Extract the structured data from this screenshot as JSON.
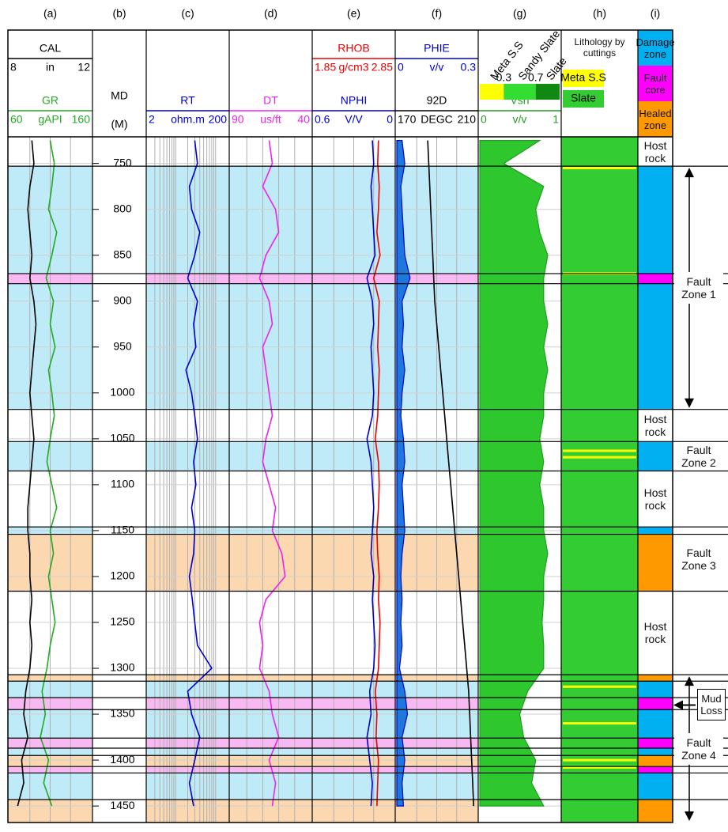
{
  "chart_data": {
    "type": "well-log",
    "panels": [
      "(a)",
      "(b)",
      "(c)",
      "(d)",
      "(e)",
      "(f)",
      "(g)",
      "(h)",
      "(i)"
    ],
    "depth_axis": {
      "label": "MD",
      "unit": "(M)",
      "ylim": [
        721,
        1468
      ],
      "yticks": [
        750,
        800,
        850,
        900,
        950,
        1000,
        1050,
        1100,
        1150,
        1200,
        1250,
        1300,
        1350,
        1400,
        1450
      ]
    },
    "depths": [
      725,
      750,
      775,
      800,
      825,
      850,
      875,
      900,
      925,
      950,
      975,
      1000,
      1025,
      1050,
      1075,
      1100,
      1125,
      1150,
      1175,
      1200,
      1225,
      1250,
      1275,
      1300,
      1325,
      1350,
      1375,
      1400,
      1425,
      1450
    ],
    "tracks": [
      {
        "xticks": [
          9,
          10,
          11
        ],
        "curves": [
          {
            "name": "CAL",
            "unit": "in",
            "xlim": [
              8,
              12
            ],
            "color": "#000000",
            "values": [
              9.1,
              9.2,
              9.0,
              8.9,
              9.0,
              9.1,
              9.0,
              9.2,
              9.3,
              9.2,
              9.1,
              9.0,
              9.1,
              9.2,
              9.1,
              9.0,
              8.9,
              8.9,
              9.0,
              9.0,
              9.1,
              9.0,
              9.1,
              9.0,
              8.8,
              8.7,
              8.9,
              8.6,
              8.7,
              8.4
            ]
          },
          {
            "name": "GR",
            "unit": "gAPI",
            "xlim": [
              60,
              160
            ],
            "color": "#22aa22",
            "values": [
              110,
              115,
              112,
              108,
              118,
              112,
              105,
              114,
              110,
              116,
              108,
              112,
              115,
              110,
              106,
              112,
              118,
              110,
              114,
              108,
              112,
              116,
              110,
              106,
              100,
              104,
              98,
              108,
              102,
              112
            ]
          }
        ]
      },
      {
        "log": true,
        "xticks": [
          3,
          4,
          5,
          6,
          7,
          8,
          9,
          10,
          20,
          30,
          40,
          50,
          60,
          70,
          80,
          90,
          100
        ],
        "curves": [
          {
            "name": "RT",
            "unit": "ohm.m",
            "xlim": [
              2,
              200
            ],
            "color": "#0000cc",
            "values": [
              30,
              35,
              22,
              25,
              40,
              30,
              20,
              35,
              28,
              32,
              18,
              25,
              30,
              35,
              28,
              32,
              25,
              30,
              28,
              22,
              26,
              30,
              35,
              80,
              20,
              25,
              40,
              30,
              22,
              28
            ]
          }
        ]
      },
      {
        "xticks": [
          80,
          70,
          60,
          50
        ],
        "curves": [
          {
            "name": "DT",
            "unit": "us/ft",
            "xlim": [
              90,
              40
            ],
            "color": "#ee22ee",
            "values": [
              66,
              64,
              70,
              62,
              60,
              68,
              72,
              66,
              64,
              70,
              68,
              66,
              64,
              68,
              70,
              66,
              62,
              64,
              58,
              56,
              68,
              72,
              70,
              72,
              66,
              64,
              60,
              66,
              62,
              64
            ]
          }
        ]
      },
      {
        "xticks": [
          2.1,
          2.35,
          2.6
        ],
        "curves": [
          {
            "name": "RHOB",
            "unit": "g/cm3",
            "xlim": [
              1.85,
              2.85
            ],
            "color": "#ee0000",
            "values": [
              2.66,
              2.65,
              2.67,
              2.66,
              2.64,
              2.68,
              2.6,
              2.67,
              2.66,
              2.65,
              2.67,
              2.66,
              2.65,
              2.62,
              2.66,
              2.67,
              2.66,
              2.64,
              2.65,
              2.67,
              2.66,
              2.68,
              2.67,
              2.66,
              2.62,
              2.64,
              2.63,
              2.66,
              2.65,
              2.64
            ]
          },
          {
            "name": "NPHI",
            "unit": "V/V",
            "xlim": [
              0.6,
              0
            ],
            "color": "#0000cc",
            "values": [
              0.16,
              0.15,
              0.17,
              0.16,
              0.15,
              0.14,
              0.2,
              0.16,
              0.15,
              0.17,
              0.16,
              0.15,
              0.16,
              0.2,
              0.17,
              0.16,
              0.15,
              0.16,
              0.17,
              0.15,
              0.16,
              0.15,
              0.14,
              0.15,
              0.18,
              0.17,
              0.2,
              0.18,
              0.16,
              0.17
            ]
          }
        ]
      },
      {
        "xticks": [
          0.075,
          0.15,
          0.225
        ],
        "curves": [
          {
            "name": "PHIE",
            "unit": "v/v",
            "xlim": [
              0,
              0.3
            ],
            "color": "#0000cc",
            "fill": "#1e78dc",
            "values": [
              0.02,
              0.03,
              0.015,
              0.02,
              0.025,
              0.03,
              0.05,
              0.02,
              0.025,
              0.02,
              0.03,
              0.02,
              0.015,
              0.025,
              0.03,
              0.02,
              0.025,
              0.03,
              0.02,
              0.015,
              0.02,
              0.015,
              0.02,
              0.01,
              0.03,
              0.04,
              0.02,
              0.03,
              0.02,
              0.025
            ]
          },
          {
            "name": "92D",
            "unit": "DEGC",
            "xlim": [
              170,
              210
            ],
            "color": "#000000",
            "values": [
              185.5,
              186,
              186.5,
              187,
              187.5,
              188,
              188.5,
              189,
              190,
              191,
              192,
              193,
              194,
              195,
              196,
              197,
              198,
              199,
              200,
              201,
              202,
              203,
              204,
              205,
              206,
              206.5,
              207,
              207.5,
              208,
              208.5
            ]
          }
        ]
      },
      {
        "classes": [
          {
            "name": "Meta S.S",
            "color": "#ffff00"
          },
          {
            "name": "Sandy Slate",
            "color": "#33dd33"
          },
          {
            "name": "Slate",
            "color": "#118811"
          }
        ],
        "class_breaks": [
          0.3,
          0.7
        ],
        "curves": [
          {
            "name": "Vsh",
            "unit": "v/v",
            "xlim": [
              0,
              1
            ],
            "color": "#1f9e1f",
            "fill": "#2ec82e",
            "values": [
              0.75,
              0.3,
              0.8,
              0.7,
              0.75,
              0.85,
              0.8,
              0.8,
              0.85,
              0.8,
              0.85,
              0.8,
              0.8,
              0.75,
              0.8,
              0.75,
              0.8,
              0.8,
              0.85,
              0.8,
              0.8,
              0.78,
              0.8,
              0.8,
              0.6,
              0.5,
              0.55,
              0.7,
              0.65,
              0.8
            ]
          }
        ]
      }
    ],
    "lithology": {
      "title": "Lithology by cuttings",
      "classes": [
        {
          "name": "Meta S.S",
          "color": "#ffff00"
        },
        {
          "name": "Slate",
          "color": "#33cc33"
        }
      ],
      "meta_ss_depths": [
        755,
        870,
        1063,
        1070,
        1320,
        1360,
        1400,
        1408
      ]
    },
    "zone_legend": [
      {
        "name": "Damage zone",
        "color": "#00b0f0",
        "tint": "#bfeaf7"
      },
      {
        "name": "Fault core",
        "color": "#ff00ff",
        "tint": "#f8b9f3"
      },
      {
        "name": "Healed zone",
        "color": "#ff9900",
        "tint": "#fcd8b0"
      }
    ],
    "zones": [
      {
        "top": 721,
        "base": 753,
        "legend": null,
        "label": "Host rock"
      },
      {
        "top": 753,
        "base": 870,
        "legend": 0
      },
      {
        "top": 870,
        "base": 881,
        "legend": 1
      },
      {
        "top": 881,
        "base": 1018,
        "legend": 0
      },
      {
        "top": 1018,
        "base": 1053,
        "legend": null,
        "label": "Host rock"
      },
      {
        "top": 1053,
        "base": 1085,
        "legend": 0
      },
      {
        "top": 1085,
        "base": 1146,
        "legend": null,
        "label": "Host rock"
      },
      {
        "top": 1146,
        "base": 1154,
        "legend": 0
      },
      {
        "top": 1154,
        "base": 1216,
        "legend": 2
      },
      {
        "top": 1216,
        "base": 1307,
        "legend": null,
        "label": "Host rock"
      },
      {
        "top": 1307,
        "base": 1314,
        "legend": 2
      },
      {
        "top": 1314,
        "base": 1332,
        "legend": 0
      },
      {
        "top": 1332,
        "base": 1345,
        "legend": 1
      },
      {
        "top": 1345,
        "base": 1376,
        "legend": 0
      },
      {
        "top": 1376,
        "base": 1387,
        "legend": 1
      },
      {
        "top": 1387,
        "base": 1395,
        "legend": 0
      },
      {
        "top": 1395,
        "base": 1407,
        "legend": 2
      },
      {
        "top": 1407,
        "base": 1414,
        "legend": 1
      },
      {
        "top": 1414,
        "base": 1443,
        "legend": 0
      },
      {
        "top": 1443,
        "base": 1468,
        "legend": 2
      }
    ],
    "fault_zones": [
      {
        "label": "Fault Zone 1",
        "top": 753,
        "base": 1018,
        "arrow": true
      },
      {
        "label": "Fault Zone 2",
        "top": 1053,
        "base": 1085,
        "arrow": false
      },
      {
        "label": "Fault Zone 3",
        "top": 1146,
        "base": 1216,
        "arrow": false
      },
      {
        "label": "Fault Zone 4",
        "top": 1307,
        "base": 1468,
        "arrow": true
      }
    ],
    "mud_loss": {
      "label": "Mud Loss",
      "depth": 1340
    }
  }
}
